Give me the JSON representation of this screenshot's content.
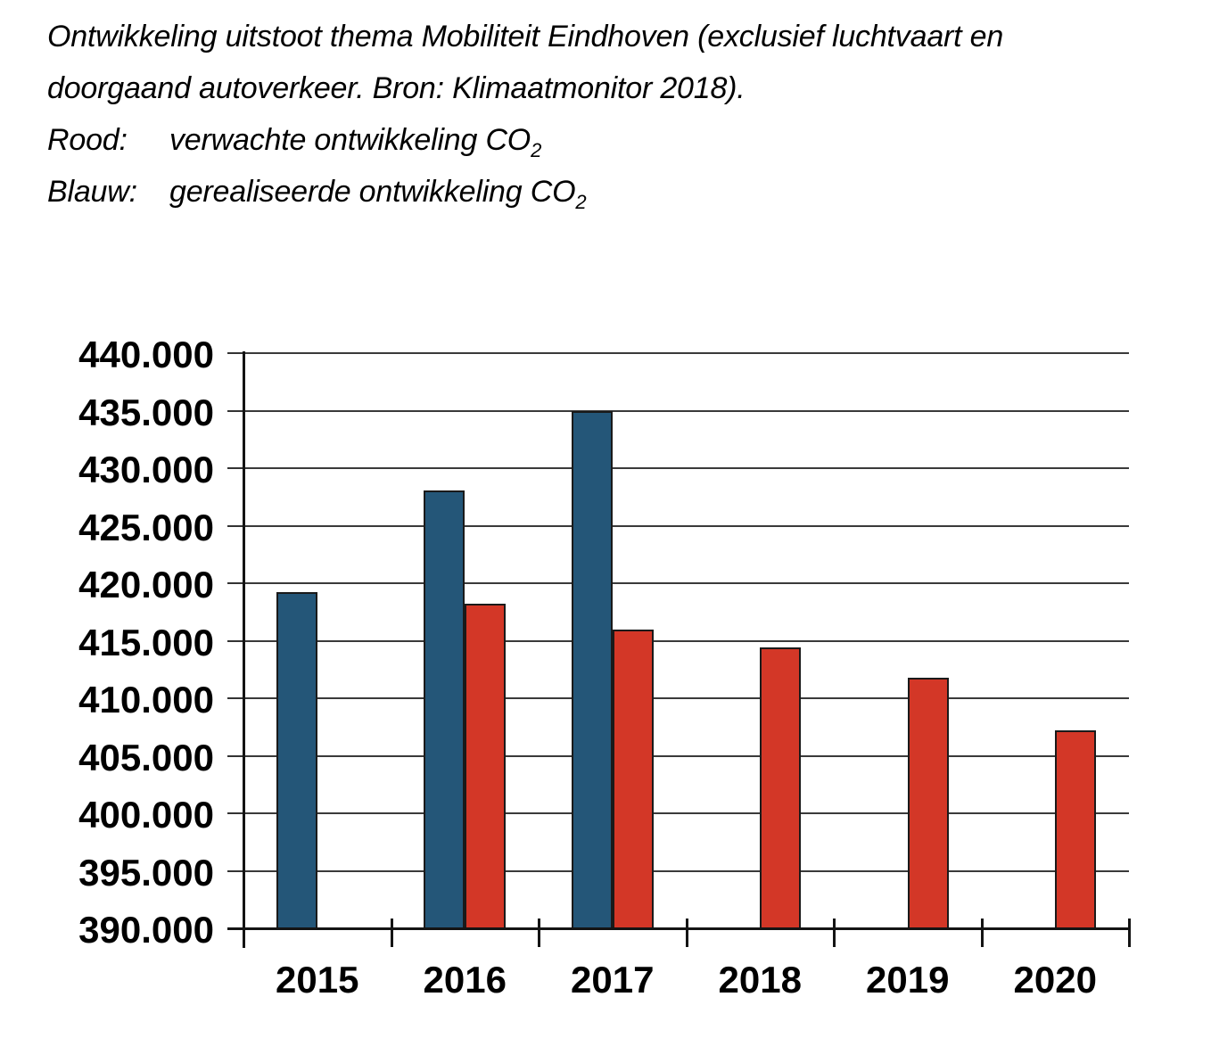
{
  "header": {
    "title_lines": [
      "Ontwikkeling uitstoot thema Mobiliteit Eindhoven (exclusief luchtvaart en",
      "doorgaand autoverkeer. Bron: Klimaatmonitor 2018)."
    ],
    "legend": [
      {
        "label": "Rood:",
        "text": "verwachte ontwikkeling CO",
        "sub": "2"
      },
      {
        "label": "Blauw:",
        "text": "gerealiseerde ontwikkeling CO",
        "sub": "2"
      }
    ]
  },
  "chart_data": {
    "type": "bar",
    "title": "Ontwikkeling uitstoot thema Mobiliteit Eindhoven (exclusief luchtvaart en doorgaand autoverkeer. Bron: Klimaatmonitor 2018).",
    "categories": [
      "2015",
      "2016",
      "2017",
      "2018",
      "2019",
      "2020"
    ],
    "series": [
      {
        "name": "gerealiseerde ontwikkeling CO2",
        "legend_color_word": "Blauw",
        "color": "#245678",
        "values": [
          419200,
          428100,
          435000,
          null,
          null,
          null
        ]
      },
      {
        "name": "verwachte ontwikkeling CO2",
        "legend_color_word": "Rood",
        "color": "#d33727",
        "values": [
          null,
          418200,
          416000,
          414400,
          411800,
          407200
        ]
      }
    ],
    "ylim": [
      390000,
      440000
    ],
    "ytick_step": 5000,
    "ytick_labels": [
      "440.000",
      "435.000",
      "430.000",
      "425.000",
      "420.000",
      "415.000",
      "410.000",
      "405.000",
      "400.000",
      "395.000",
      "390.000"
    ],
    "grid": true,
    "legend_position": "text-above-chart"
  }
}
